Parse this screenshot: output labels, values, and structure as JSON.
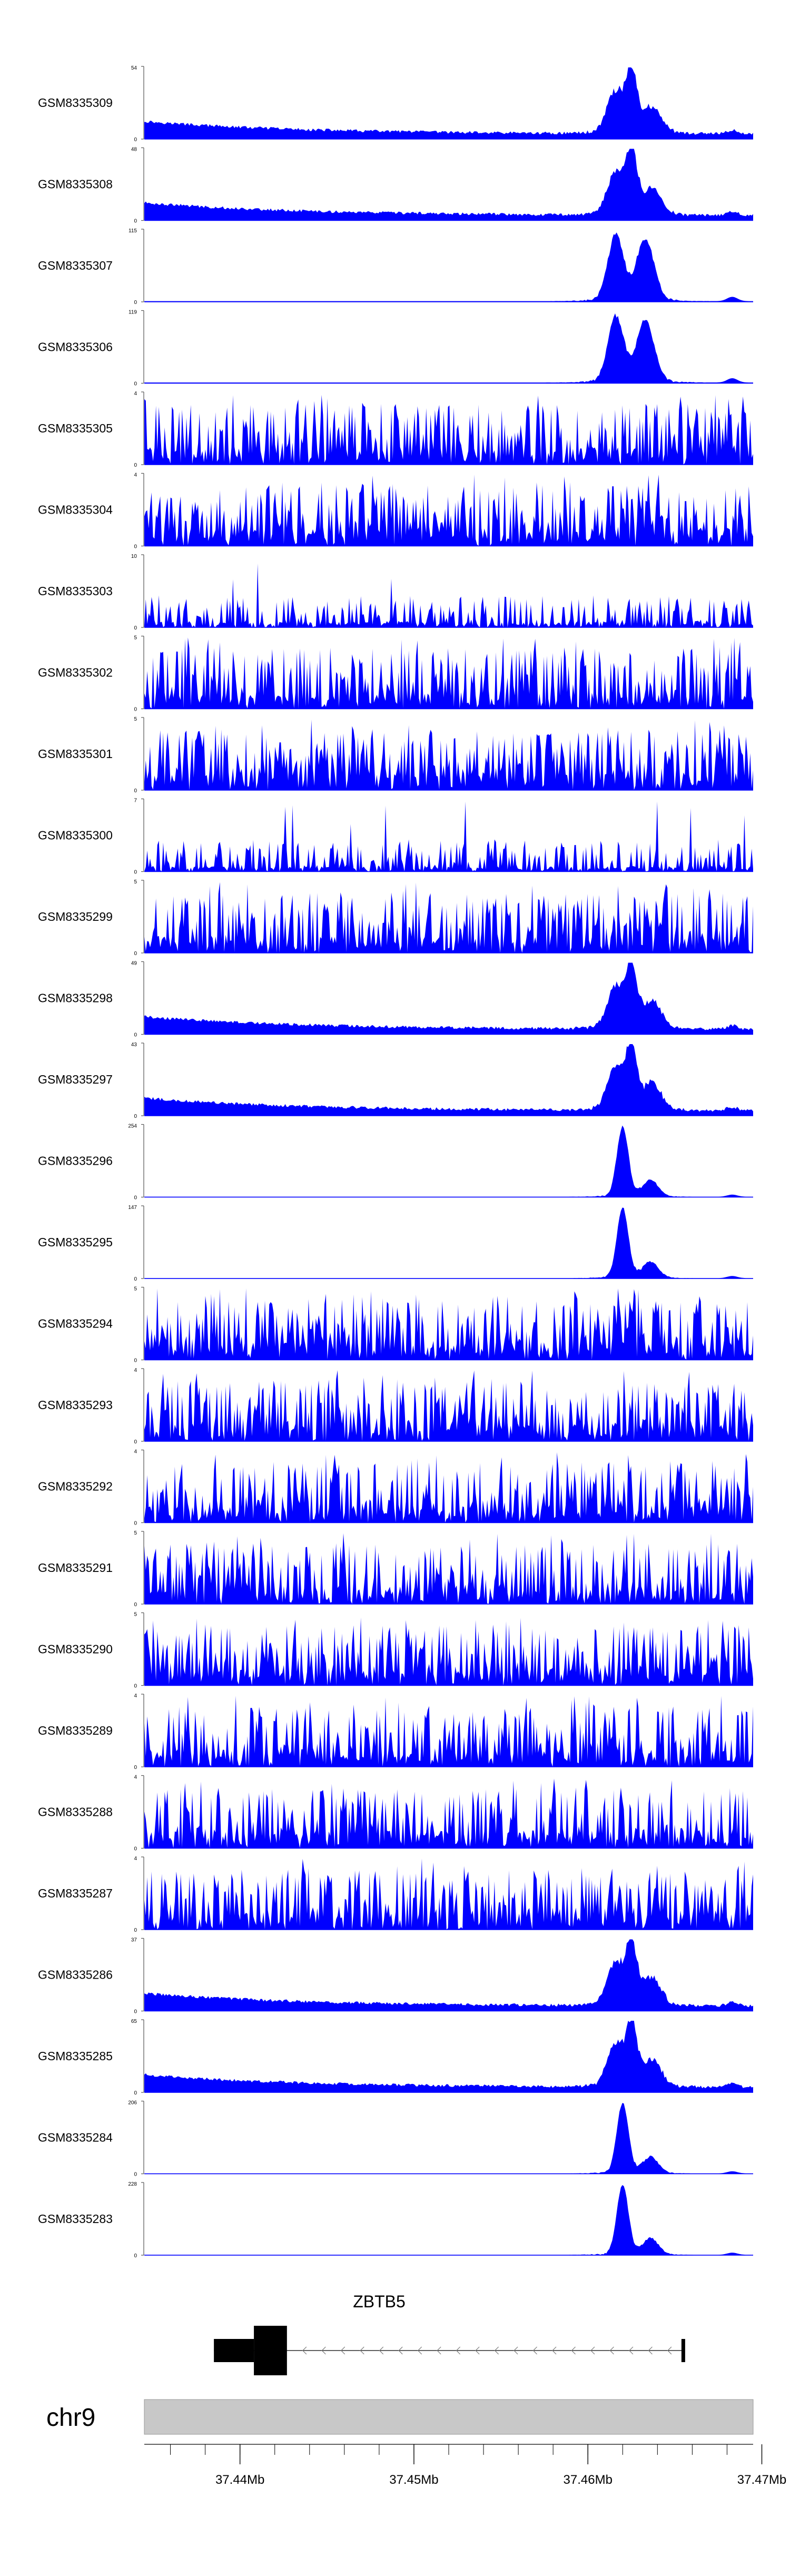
{
  "chart_data": {
    "type": "area",
    "title": "",
    "xlabel": "",
    "ylabel": "",
    "xlim": [
      37.4345,
      37.4695
    ],
    "x_unit": "Mb",
    "color": "#0000ff",
    "peak_center": 37.4625,
    "tracks": [
      {
        "name": "GSM8335309",
        "ymax": "54",
        "ymin": "0",
        "ymax_value": 54,
        "profile": "peak_low_bg"
      },
      {
        "name": "GSM8335308",
        "ymax": "48",
        "ymin": "0",
        "ymax_value": 48,
        "profile": "peak_low_bg"
      },
      {
        "name": "GSM8335307",
        "ymax": "115",
        "ymin": "0",
        "ymax_value": 115,
        "profile": "double_peak"
      },
      {
        "name": "GSM8335306",
        "ymax": "119",
        "ymin": "0",
        "ymax_value": 119,
        "profile": "double_peak"
      },
      {
        "name": "GSM8335305",
        "ymax": "4",
        "ymin": "0",
        "ymax_value": 4,
        "profile": "noise"
      },
      {
        "name": "GSM8335304",
        "ymax": "4",
        "ymin": "0",
        "ymax_value": 4,
        "profile": "noise"
      },
      {
        "name": "GSM8335303",
        "ymax": "10",
        "ymin": "0",
        "ymax_value": 10,
        "profile": "noise_sparse"
      },
      {
        "name": "GSM8335302",
        "ymax": "5",
        "ymin": "0",
        "ymax_value": 5,
        "profile": "noise"
      },
      {
        "name": "GSM8335301",
        "ymax": "5",
        "ymin": "0",
        "ymax_value": 5,
        "profile": "noise"
      },
      {
        "name": "GSM8335300",
        "ymax": "7",
        "ymin": "0",
        "ymax_value": 7,
        "profile": "noise_sparse"
      },
      {
        "name": "GSM8335299",
        "ymax": "5",
        "ymin": "0",
        "ymax_value": 5,
        "profile": "noise"
      },
      {
        "name": "GSM8335298",
        "ymax": "49",
        "ymin": "0",
        "ymax_value": 49,
        "profile": "peak_low_bg"
      },
      {
        "name": "GSM8335297",
        "ymax": "43",
        "ymin": "0",
        "ymax_value": 43,
        "profile": "peak_low_bg"
      },
      {
        "name": "GSM8335296",
        "ymax": "254",
        "ymin": "0",
        "ymax_value": 254,
        "profile": "sharp_peak"
      },
      {
        "name": "GSM8335295",
        "ymax": "147",
        "ymin": "0",
        "ymax_value": 147,
        "profile": "sharp_peak"
      },
      {
        "name": "GSM8335294",
        "ymax": "5",
        "ymin": "0",
        "ymax_value": 5,
        "profile": "noise"
      },
      {
        "name": "GSM8335293",
        "ymax": "4",
        "ymin": "0",
        "ymax_value": 4,
        "profile": "noise"
      },
      {
        "name": "GSM8335292",
        "ymax": "4",
        "ymin": "0",
        "ymax_value": 4,
        "profile": "noise"
      },
      {
        "name": "GSM8335291",
        "ymax": "5",
        "ymin": "0",
        "ymax_value": 5,
        "profile": "noise"
      },
      {
        "name": "GSM8335290",
        "ymax": "5",
        "ymin": "0",
        "ymax_value": 5,
        "profile": "noise"
      },
      {
        "name": "GSM8335289",
        "ymax": "4",
        "ymin": "0",
        "ymax_value": 4,
        "profile": "noise"
      },
      {
        "name": "GSM8335288",
        "ymax": "4",
        "ymin": "0",
        "ymax_value": 4,
        "profile": "noise"
      },
      {
        "name": "GSM8335287",
        "ymax": "4",
        "ymin": "0",
        "ymax_value": 4,
        "profile": "noise"
      },
      {
        "name": "GSM8335286",
        "ymax": "37",
        "ymin": "0",
        "ymax_value": 37,
        "profile": "peak_low_bg"
      },
      {
        "name": "GSM8335285",
        "ymax": "65",
        "ymin": "0",
        "ymax_value": 65,
        "profile": "peak_low_bg"
      },
      {
        "name": "GSM8335284",
        "ymax": "206",
        "ymin": "0",
        "ymax_value": 206,
        "profile": "sharp_peak"
      },
      {
        "name": "GSM8335283",
        "ymax": "228",
        "ymin": "0",
        "ymax_value": 228,
        "profile": "sharp_peak"
      }
    ],
    "gene": {
      "name": "ZBTB5",
      "start": 37.4385,
      "end": 37.4655,
      "thick_start": 37.4385,
      "thick_end": 37.4427,
      "utr_start": 37.4385,
      "utr_end": 37.4408,
      "strand": "-",
      "color": "#000000"
    },
    "chromosome": {
      "label": "chr9",
      "band_color": "#c8c8c8",
      "ticks": [
        {
          "value": 37.44,
          "label": "37.44Mb"
        },
        {
          "value": 37.45,
          "label": "37.45Mb"
        },
        {
          "value": 37.46,
          "label": "37.46Mb"
        },
        {
          "value": 37.47,
          "label": "37.47Mb"
        }
      ],
      "minor_step": 0.002
    }
  }
}
